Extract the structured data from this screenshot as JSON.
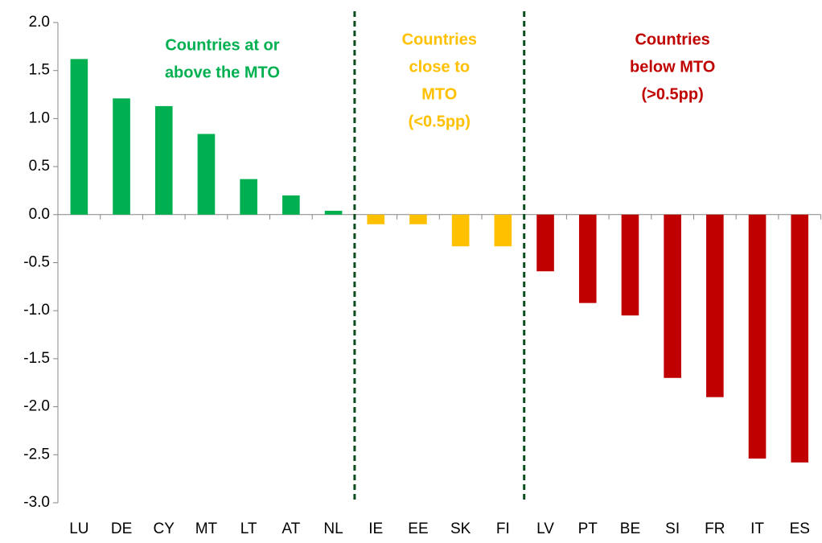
{
  "chart_data": {
    "type": "bar",
    "categories": [
      "LU",
      "DE",
      "CY",
      "MT",
      "LT",
      "AT",
      "NL",
      "IE",
      "EE",
      "SK",
      "FI",
      "LV",
      "PT",
      "BE",
      "SI",
      "FR",
      "IT",
      "ES"
    ],
    "values": [
      1.62,
      1.21,
      1.13,
      0.84,
      0.37,
      0.2,
      0.04,
      -0.1,
      -0.1,
      -0.33,
      -0.33,
      -0.59,
      -0.92,
      -1.05,
      -1.7,
      -1.9,
      -2.54,
      -2.58
    ],
    "colors": [
      "#00b050",
      "#00b050",
      "#00b050",
      "#00b050",
      "#00b050",
      "#00b050",
      "#00b050",
      "#ffc000",
      "#ffc000",
      "#ffc000",
      "#ffc000",
      "#c00000",
      "#c00000",
      "#c00000",
      "#c00000",
      "#c00000",
      "#c00000",
      "#c00000"
    ],
    "ylim": [
      -3,
      2
    ],
    "yticks": [
      {
        "value": 2,
        "label": "2.0"
      },
      1.5,
      {
        "value": 1,
        "label": "1.0"
      },
      0.5,
      {
        "value": 0,
        "label": "0.0"
      },
      -0.5,
      {
        "value": -1,
        "label": "-1.0"
      },
      -1.5,
      {
        "value": -2,
        "label": "-2.0"
      },
      -2.5,
      {
        "value": -3,
        "label": "-3.0"
      }
    ],
    "annotations": [
      {
        "lines": [
          "Countries at or",
          "above the MTO"
        ],
        "color": "#00b050"
      },
      {
        "lines": [
          "Countries",
          "close to",
          "MTO",
          "(<0.5pp)"
        ],
        "color": "#ffc000"
      },
      {
        "lines": [
          "Countries",
          "below MTO",
          "(>0.5pp)"
        ],
        "color": "#c00000"
      }
    ]
  }
}
